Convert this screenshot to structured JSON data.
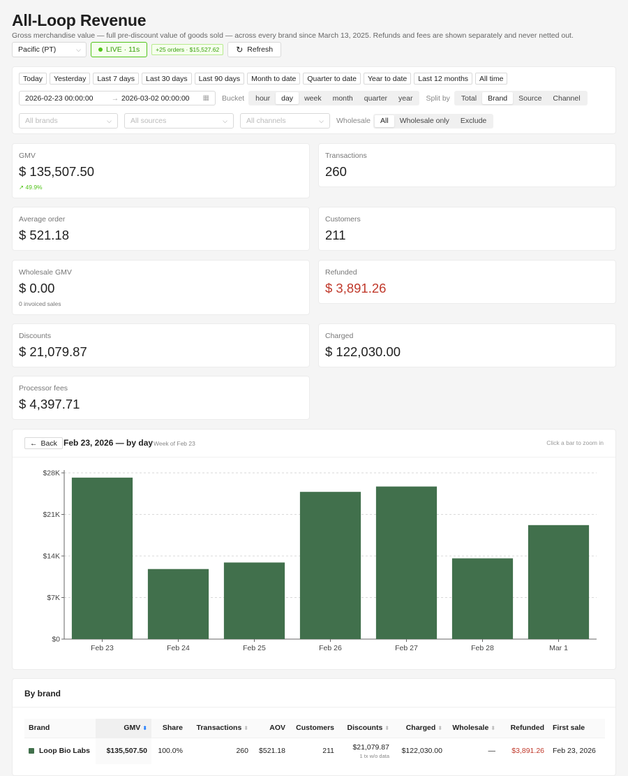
{
  "header": {
    "title": "All-Loop Revenue",
    "subtitle": "Gross merchandise value — full pre-discount value of goods sold — across every brand since March 13, 2025. Refunds and fees are shown separately and never netted out."
  },
  "topbar": {
    "timezone": "Pacific (PT)",
    "live_label": "LIVE · 11s",
    "orders_badge": "+25 orders · $15,527.62",
    "refresh_label": "Refresh"
  },
  "filters": {
    "presets": [
      "Today",
      "Yesterday",
      "Last 7 days",
      "Last 30 days",
      "Last 90 days",
      "Month to date",
      "Quarter to date",
      "Year to date",
      "Last 12 months",
      "All time"
    ],
    "range_start": "2026-02-23 00:00:00",
    "range_arrow": "→",
    "range_end": "2026-03-02 00:00:00",
    "bucket_label": "Bucket",
    "buckets": [
      "hour",
      "day",
      "week",
      "month",
      "quarter",
      "year"
    ],
    "bucket_active": "day",
    "split_label": "Split by",
    "splits": [
      "Total",
      "Brand",
      "Source",
      "Channel"
    ],
    "split_active": "Brand",
    "brands_placeholder": "All brands",
    "sources_placeholder": "All sources",
    "channels_placeholder": "All channels",
    "wholesale_label": "Wholesale",
    "wholesale_options": [
      "All",
      "Wholesale only",
      "Exclude"
    ],
    "wholesale_active": "All"
  },
  "stats": {
    "gmv": {
      "label": "GMV",
      "value": "$ 135,507.50",
      "trend": "49.9%"
    },
    "transactions": {
      "label": "Transactions",
      "value": "260"
    },
    "average_order": {
      "label": "Average order",
      "value": "$ 521.18"
    },
    "customers": {
      "label": "Customers",
      "value": "211"
    },
    "wholesale_gmv": {
      "label": "Wholesale GMV",
      "value": "$ 0.00",
      "note": "0 invoiced sales"
    },
    "refunded": {
      "label": "Refunded",
      "value": "$ 3,891.26"
    },
    "discounts": {
      "label": "Discounts",
      "value": "$ 21,079.87"
    },
    "charged": {
      "label": "Charged",
      "value": "$ 122,030.00"
    },
    "processor_fees": {
      "label": "Processor fees",
      "value": "$ 4,397.71"
    }
  },
  "chart": {
    "back_label": "Back",
    "title": "Feb 23, 2026 — by day",
    "subtitle": "Week of Feb 23",
    "hint": "Click a bar to zoom in"
  },
  "chart_data": {
    "type": "bar",
    "title": "Feb 23, 2026 — by day",
    "categories": [
      "Feb 23",
      "Feb 24",
      "Feb 25",
      "Feb 26",
      "Feb 27",
      "Feb 28",
      "Mar 1"
    ],
    "values": [
      27200,
      11800,
      12900,
      24800,
      25700,
      13600,
      19200
    ],
    "y_ticks": [
      "$0",
      "$7K",
      "$14K",
      "$21K",
      "$28K"
    ],
    "y_tick_values": [
      0,
      7000,
      14000,
      21000,
      28000
    ],
    "ylim": [
      0,
      28000
    ],
    "grid": true,
    "color": "#41704c"
  },
  "brand_table": {
    "title": "By brand",
    "columns": [
      "Brand",
      "GMV",
      "Share",
      "Transactions",
      "AOV",
      "Customers",
      "Discounts",
      "Charged",
      "Wholesale",
      "Refunded",
      "First sale"
    ],
    "rows": [
      {
        "brand": "Loop Bio Labs",
        "gmv": "$135,507.50",
        "share": "100.0%",
        "transactions": "260",
        "aov": "$521.18",
        "customers": "211",
        "discounts": "$21,079.87",
        "discounts_note": "1 tx w/o data",
        "charged": "$122,030.00",
        "wholesale": "—",
        "refunded": "$3,891.26",
        "first_sale": "Feb 23, 2026"
      }
    ]
  }
}
